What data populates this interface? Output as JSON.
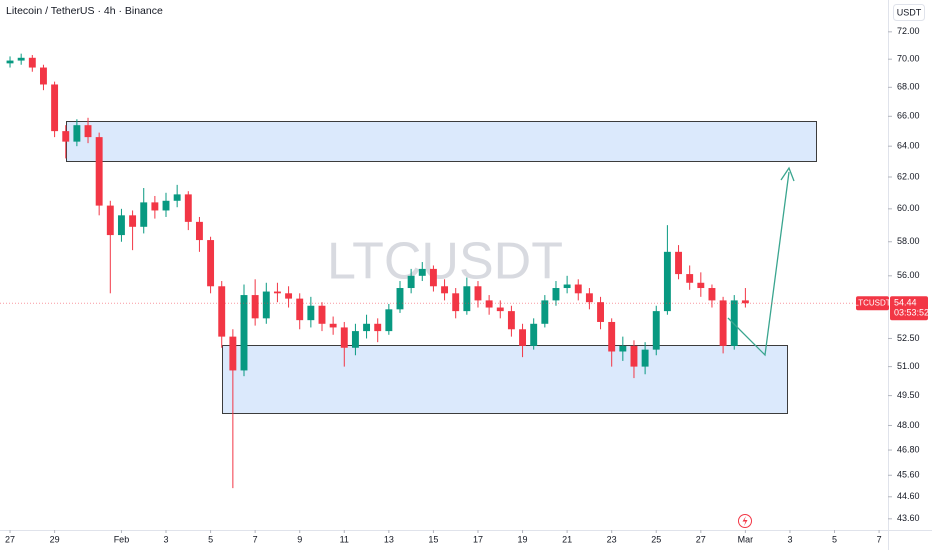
{
  "chart_data": {
    "type": "candlestick",
    "title": "Litecoin / TetherUS · 4h · Binance",
    "watermark": "LTCUSDT",
    "currency": "USDT",
    "symbol_tag": "LTCUSDT",
    "last_price": 54.44,
    "countdown": "03:53:52",
    "log_scale": true,
    "grid": false,
    "up_color": "#089981",
    "down_color": "#f23645",
    "xlim": [
      -0.45,
      39.4
    ],
    "ylim": [
      43.1,
      74.4
    ],
    "xticks": [
      {
        "value": 0,
        "label": "27"
      },
      {
        "value": 2,
        "label": "29"
      },
      {
        "value": 5,
        "label": "Feb"
      },
      {
        "value": 7,
        "label": "3"
      },
      {
        "value": 9,
        "label": "5"
      },
      {
        "value": 11,
        "label": "7"
      },
      {
        "value": 13,
        "label": "9"
      },
      {
        "value": 15,
        "label": "11"
      },
      {
        "value": 17,
        "label": "13"
      },
      {
        "value": 19,
        "label": "15"
      },
      {
        "value": 21,
        "label": "17"
      },
      {
        "value": 23,
        "label": "19"
      },
      {
        "value": 25,
        "label": "21"
      },
      {
        "value": 27,
        "label": "23"
      },
      {
        "value": 29,
        "label": "25"
      },
      {
        "value": 31,
        "label": "27"
      },
      {
        "value": 33,
        "label": "Mar"
      },
      {
        "value": 35,
        "label": "3"
      },
      {
        "value": 37,
        "label": "5"
      },
      {
        "value": 39,
        "label": "7"
      }
    ],
    "yticks": [
      {
        "value": 72,
        "label": "72.00"
      },
      {
        "value": 70,
        "label": "70.00"
      },
      {
        "value": 68,
        "label": "68.00"
      },
      {
        "value": 66,
        "label": "66.00"
      },
      {
        "value": 64,
        "label": "64.00"
      },
      {
        "value": 62,
        "label": "62.00"
      },
      {
        "value": 60,
        "label": "60.00"
      },
      {
        "value": 58,
        "label": "58.00"
      },
      {
        "value": 56,
        "label": "56.00"
      },
      {
        "value": 52.5,
        "label": "52.50"
      },
      {
        "value": 51,
        "label": "51.00"
      },
      {
        "value": 49.5,
        "label": "49.50"
      },
      {
        "value": 48,
        "label": "48.00"
      },
      {
        "value": 46.8,
        "label": "46.80"
      },
      {
        "value": 45.6,
        "label": "45.60"
      },
      {
        "value": 44.6,
        "label": "44.60"
      },
      {
        "value": 43.6,
        "label": "43.60"
      }
    ],
    "x": [
      0,
      0.5,
      1,
      1.5,
      2,
      2.5,
      3,
      3.5,
      4,
      4.5,
      5,
      5.5,
      6,
      6.5,
      7,
      7.5,
      8,
      8.5,
      9,
      9.5,
      10,
      10.5,
      11,
      11.5,
      12,
      12.5,
      13,
      13.5,
      14,
      14.5,
      15,
      15.5,
      16,
      16.5,
      17,
      17.5,
      18,
      18.5,
      19,
      19.5,
      20,
      20.5,
      21,
      21.5,
      22,
      22.5,
      23,
      23.5,
      24,
      24.5,
      25,
      25.5,
      26,
      26.5,
      27,
      27.5,
      28,
      28.5,
      29,
      29.5,
      30,
      30.5,
      31,
      31.5,
      32,
      32.5,
      33
    ],
    "open": [
      69.7,
      69.9,
      70.1,
      69.4,
      68.2,
      65.0,
      64.3,
      65.4,
      64.6,
      60.2,
      58.4,
      59.6,
      58.9,
      60.4,
      59.9,
      60.5,
      60.9,
      59.2,
      58.1,
      55.4,
      52.6,
      50.8,
      54.9,
      53.6,
      55.1,
      55.0,
      54.7,
      53.5,
      54.3,
      53.3,
      53.1,
      52.0,
      52.9,
      53.3,
      52.9,
      54.1,
      55.3,
      56.0,
      56.4,
      55.4,
      55.0,
      54.0,
      55.4,
      54.6,
      54.2,
      54.0,
      53.0,
      52.1,
      53.3,
      54.6,
      55.3,
      55.5,
      55.0,
      54.5,
      53.4,
      51.8,
      52.1,
      51.0,
      51.9,
      54.0,
      57.4,
      56.1,
      55.6,
      55.3,
      54.6,
      52.1,
      54.6
    ],
    "high": [
      70.2,
      70.4,
      70.3,
      69.6,
      68.4,
      65.4,
      65.8,
      65.9,
      64.9,
      60.5,
      60.0,
      59.9,
      61.3,
      60.8,
      61.0,
      61.5,
      61.1,
      59.5,
      58.3,
      55.7,
      53.0,
      55.5,
      55.8,
      55.6,
      55.6,
      55.4,
      55.0,
      54.8,
      54.5,
      53.7,
      53.4,
      53.3,
      53.8,
      53.6,
      54.4,
      55.7,
      56.4,
      56.8,
      56.6,
      55.8,
      55.3,
      55.9,
      55.7,
      54.9,
      54.6,
      54.3,
      53.3,
      53.6,
      54.9,
      55.7,
      56.0,
      55.8,
      55.3,
      54.8,
      53.6,
      52.6,
      52.4,
      52.3,
      54.3,
      59.0,
      57.8,
      56.6,
      56.2,
      55.5,
      54.8,
      54.9,
      55.3
    ],
    "low": [
      69.4,
      69.6,
      69.1,
      67.8,
      64.6,
      63.2,
      64.0,
      64.2,
      59.6,
      55.0,
      58.0,
      57.5,
      58.5,
      59.4,
      59.5,
      60.1,
      58.7,
      57.4,
      55.0,
      52.0,
      45.0,
      50.5,
      53.2,
      53.3,
      54.5,
      54.2,
      53.0,
      53.1,
      52.9,
      52.7,
      51.0,
      51.6,
      52.5,
      52.3,
      52.7,
      53.9,
      55.0,
      55.7,
      55.1,
      54.6,
      53.6,
      53.8,
      54.2,
      53.8,
      53.6,
      52.6,
      51.5,
      51.9,
      53.1,
      54.3,
      55.0,
      54.6,
      54.1,
      53.0,
      51.0,
      51.3,
      50.4,
      50.6,
      51.6,
      53.8,
      55.8,
      55.2,
      54.8,
      54.2,
      51.7,
      51.9,
      54.2
    ],
    "close": [
      69.9,
      70.1,
      69.4,
      68.2,
      65.0,
      64.3,
      65.4,
      64.6,
      60.2,
      58.4,
      59.6,
      58.9,
      60.4,
      59.9,
      60.5,
      60.9,
      59.2,
      58.1,
      55.4,
      52.6,
      50.8,
      54.9,
      53.6,
      55.1,
      55.0,
      54.7,
      53.5,
      54.3,
      53.3,
      53.1,
      52.0,
      52.9,
      53.3,
      52.9,
      54.1,
      55.3,
      56.0,
      56.4,
      55.4,
      55.0,
      54.0,
      55.4,
      54.6,
      54.2,
      54.0,
      53.0,
      52.1,
      53.3,
      54.6,
      55.3,
      55.5,
      55.0,
      54.5,
      53.4,
      51.8,
      52.1,
      51.0,
      51.9,
      54.0,
      57.4,
      56.1,
      55.6,
      55.3,
      54.6,
      52.1,
      54.6,
      54.44
    ]
  }
}
